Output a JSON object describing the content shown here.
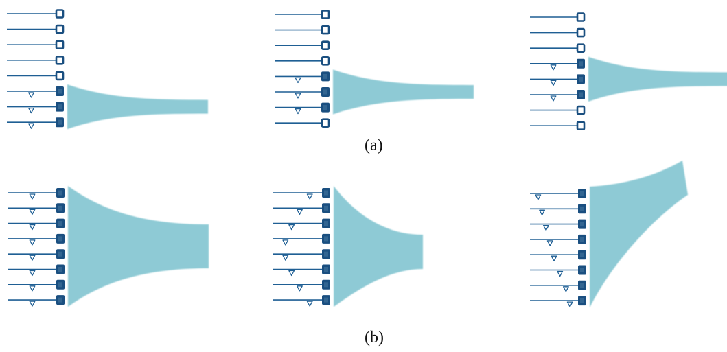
{
  "captions": {
    "a": "(a)",
    "b": "(b)"
  },
  "colors": {
    "line": "#1f5f94",
    "element_on": "#1a4f80",
    "element_on_inner": "#3d6f98",
    "element_off_fill": "#ffffff",
    "beam": "#88c8d3",
    "delay_marker": "#1f5f94"
  },
  "icons": {
    "element_on": "filled-square-icon",
    "element_off": "hollow-square-icon",
    "delay": "triangle-down-icon",
    "beam": "beam-shape"
  },
  "panels": [
    {
      "group": "a",
      "name": "subarray-bottom",
      "elements": [
        0,
        0,
        0,
        0,
        0,
        1,
        1,
        1
      ],
      "delays": [
        0,
        0,
        0,
        0,
        0,
        0.5,
        0.5,
        0.5
      ],
      "beam": "narrow-straight"
    },
    {
      "group": "a",
      "name": "subarray-middle",
      "elements": [
        0,
        0,
        0,
        0,
        1,
        1,
        1,
        0
      ],
      "delays": [
        0,
        0,
        0,
        0,
        0.5,
        0.5,
        0.5,
        0
      ],
      "beam": "narrow-straight"
    },
    {
      "group": "a",
      "name": "subarray-upper",
      "elements": [
        0,
        0,
        0,
        1,
        1,
        1,
        0,
        0
      ],
      "delays": [
        0,
        0,
        0,
        0.5,
        0.5,
        0.5,
        0,
        0
      ],
      "beam": "narrow-straight"
    },
    {
      "group": "b",
      "name": "full-aperture-plane",
      "elements": [
        1,
        1,
        1,
        1,
        1,
        1,
        1,
        1
      ],
      "delays": [
        0.5,
        0.5,
        0.5,
        0.5,
        0.5,
        0.5,
        0.5,
        0.5
      ],
      "beam": "wide-straight"
    },
    {
      "group": "b",
      "name": "full-aperture-focused",
      "elements": [
        1,
        1,
        1,
        1,
        1,
        1,
        1,
        1
      ],
      "delays": [
        0.8,
        0.55,
        0.35,
        0.2,
        0.2,
        0.35,
        0.55,
        0.8
      ],
      "beam": "focused"
    },
    {
      "group": "b",
      "name": "full-aperture-steered",
      "elements": [
        1,
        1,
        1,
        1,
        1,
        1,
        1,
        1
      ],
      "delays": [
        0.1,
        0.2,
        0.3,
        0.4,
        0.5,
        0.65,
        0.8,
        0.9
      ],
      "beam": "steered"
    }
  ]
}
